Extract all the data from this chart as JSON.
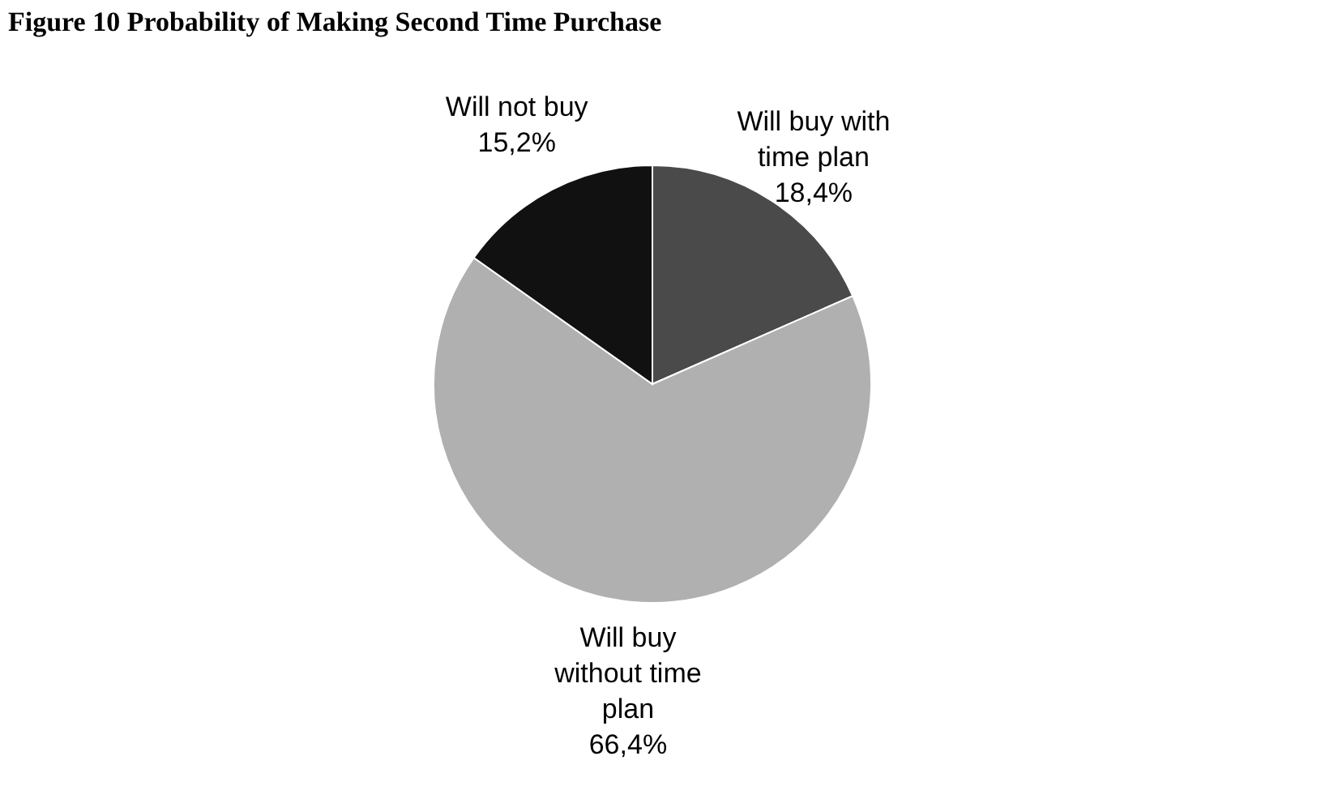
{
  "chart_data": {
    "type": "pie",
    "title": "Figure 10 Probability of Making Second Time Purchase",
    "categories": [
      "Will buy with time plan",
      "Will buy without time plan",
      "Will not buy"
    ],
    "values": [
      18.4,
      66.4,
      15.2
    ],
    "value_labels": [
      "18,4%",
      "66,4%",
      "15,2%"
    ],
    "colors": [
      "#4a4a4a",
      "#b0b0b0",
      "#111111"
    ],
    "legend": false
  }
}
